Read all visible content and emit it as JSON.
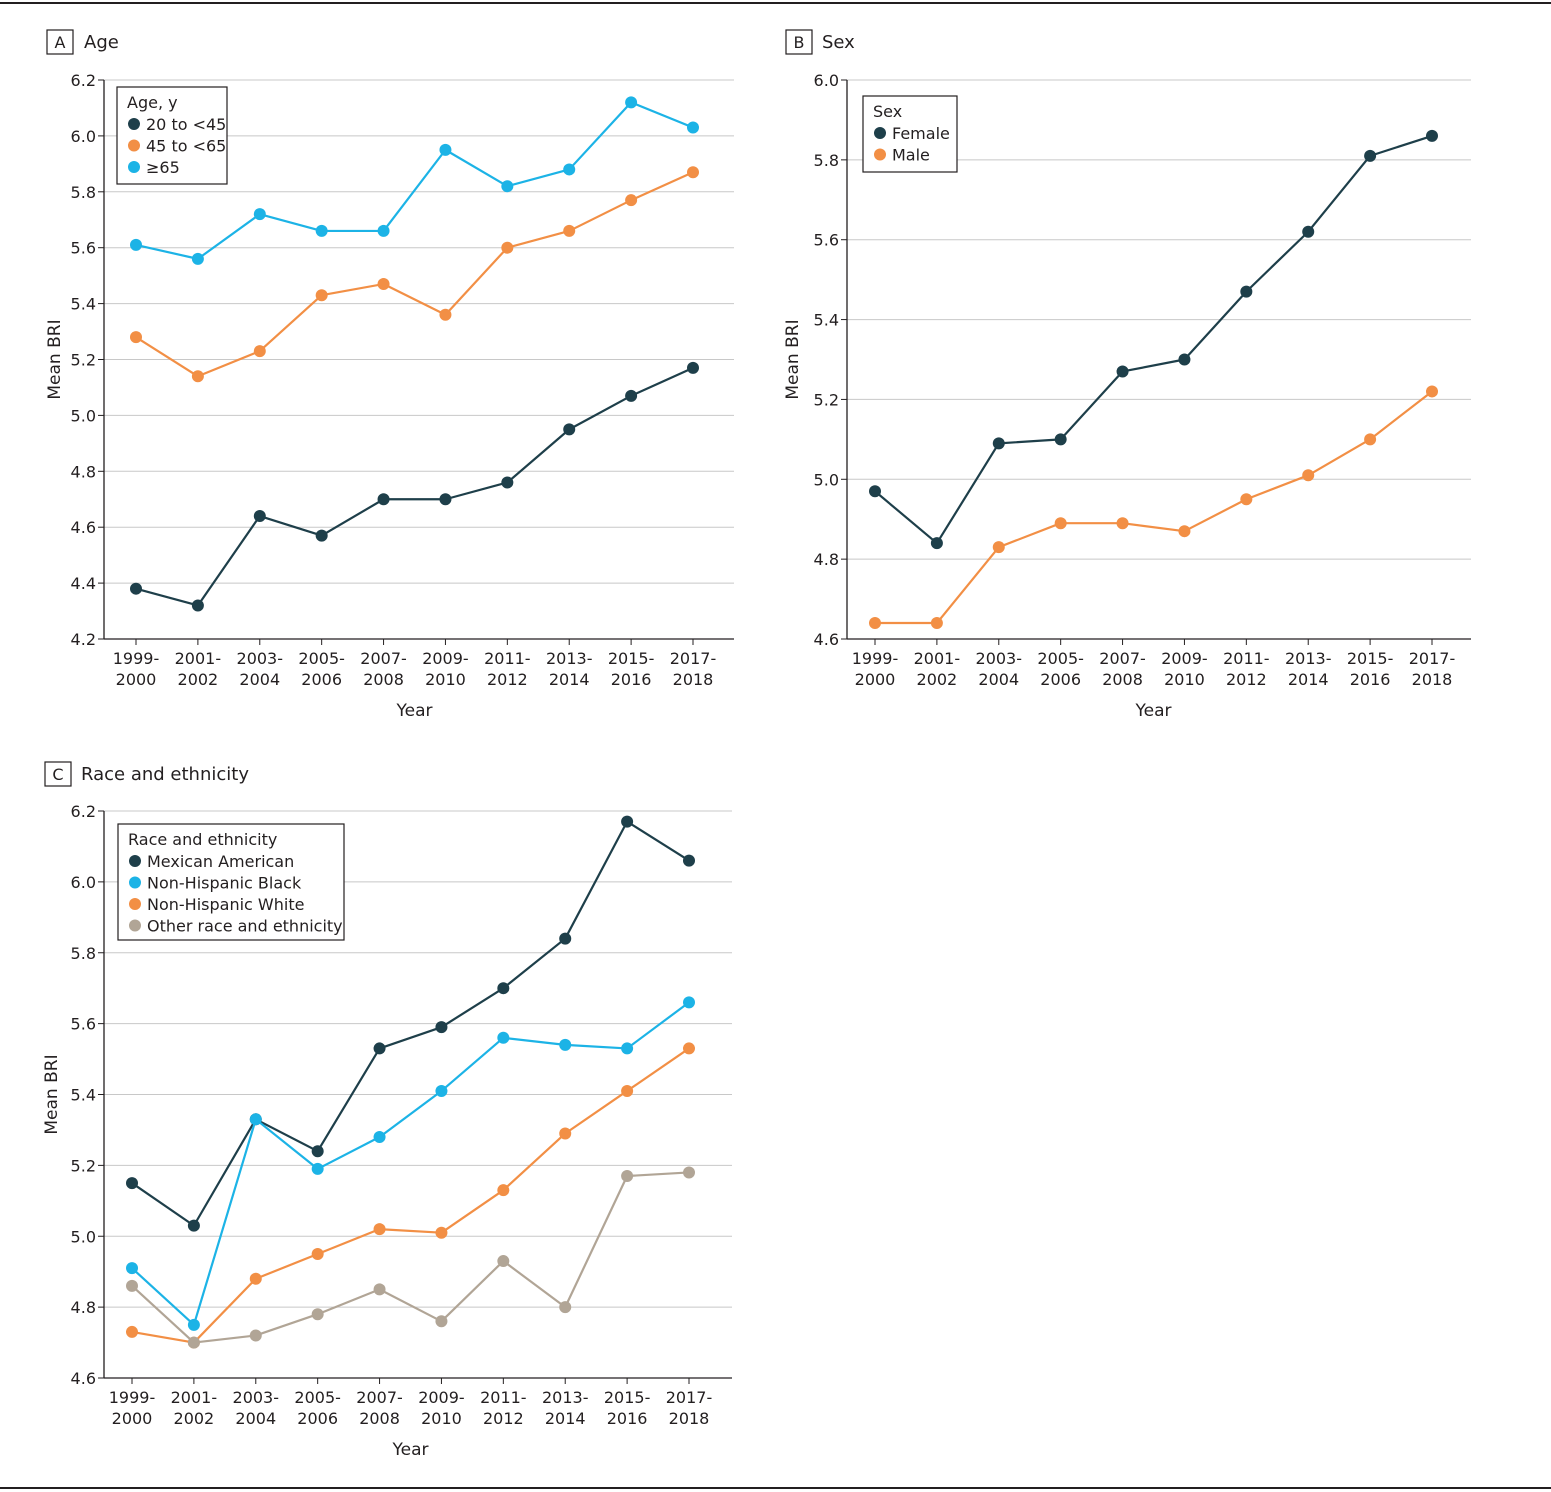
{
  "colors": {
    "dark": "#1e3f4a",
    "orange": "#f28f45",
    "cyan": "#1cb3e6",
    "gray": "#b1a596",
    "grid": "#c8c8c8",
    "axis": "#231f20"
  },
  "chart_data": [
    {
      "type": "line",
      "panel": "A",
      "title": "Age",
      "xlabel": "Year",
      "ylabel": "Mean BRI",
      "ylim": [
        4.2,
        6.2
      ],
      "yticks": [
        "4.2",
        "4.4",
        "4.6",
        "4.8",
        "5.0",
        "5.2",
        "5.4",
        "5.6",
        "5.8",
        "6.0",
        "6.2"
      ],
      "categories": [
        [
          "1999-",
          "2000"
        ],
        [
          "2001-",
          "2002"
        ],
        [
          "2003-",
          "2004"
        ],
        [
          "2005-",
          "2006"
        ],
        [
          "2007-",
          "2008"
        ],
        [
          "2009-",
          "2010"
        ],
        [
          "2011-",
          "2012"
        ],
        [
          "2013-",
          "2014"
        ],
        [
          "2015-",
          "2016"
        ],
        [
          "2017-",
          "2018"
        ]
      ],
      "legend_title": "Age, y",
      "legend_position": "top-left",
      "series": [
        {
          "name": "20 to <45",
          "color": "dark",
          "values": [
            4.38,
            4.32,
            4.64,
            4.57,
            4.7,
            4.7,
            4.76,
            4.95,
            5.07,
            5.17
          ]
        },
        {
          "name": "45 to <65",
          "color": "orange",
          "values": [
            5.28,
            5.14,
            5.23,
            5.43,
            5.47,
            5.36,
            5.6,
            5.66,
            5.77,
            5.87
          ]
        },
        {
          "name": "≥65",
          "color": "cyan",
          "values": [
            5.61,
            5.56,
            5.72,
            5.66,
            5.66,
            5.95,
            5.82,
            5.88,
            6.12,
            6.03
          ]
        }
      ]
    },
    {
      "type": "line",
      "panel": "B",
      "title": "Sex",
      "xlabel": "Year",
      "ylabel": "Mean BRI",
      "ylim": [
        4.6,
        6.0
      ],
      "yticks": [
        "4.6",
        "4.8",
        "5.0",
        "5.2",
        "5.4",
        "5.6",
        "5.8",
        "6.0"
      ],
      "categories": [
        [
          "1999-",
          "2000"
        ],
        [
          "2001-",
          "2002"
        ],
        [
          "2003-",
          "2004"
        ],
        [
          "2005-",
          "2006"
        ],
        [
          "2007-",
          "2008"
        ],
        [
          "2009-",
          "2010"
        ],
        [
          "2011-",
          "2012"
        ],
        [
          "2013-",
          "2014"
        ],
        [
          "2015-",
          "2016"
        ],
        [
          "2017-",
          "2018"
        ]
      ],
      "legend_title": "Sex",
      "legend_position": "top-left",
      "series": [
        {
          "name": "Female",
          "color": "dark",
          "values": [
            4.97,
            4.84,
            5.09,
            5.1,
            5.27,
            5.3,
            5.47,
            5.62,
            5.81,
            5.86
          ]
        },
        {
          "name": "Male",
          "color": "orange",
          "values": [
            4.64,
            4.64,
            4.83,
            4.89,
            4.89,
            4.87,
            4.95,
            5.01,
            5.1,
            5.22
          ]
        }
      ]
    },
    {
      "type": "line",
      "panel": "C",
      "title": "Race and ethnicity",
      "xlabel": "Year",
      "ylabel": "Mean BRI",
      "ylim": [
        4.6,
        6.2
      ],
      "yticks": [
        "4.6",
        "4.8",
        "5.0",
        "5.2",
        "5.4",
        "5.6",
        "5.8",
        "6.0",
        "6.2"
      ],
      "categories": [
        [
          "1999-",
          "2000"
        ],
        [
          "2001-",
          "2002"
        ],
        [
          "2003-",
          "2004"
        ],
        [
          "2005-",
          "2006"
        ],
        [
          "2007-",
          "2008"
        ],
        [
          "2009-",
          "2010"
        ],
        [
          "2011-",
          "2012"
        ],
        [
          "2013-",
          "2014"
        ],
        [
          "2015-",
          "2016"
        ],
        [
          "2017-",
          "2018"
        ]
      ],
      "legend_title": "Race and ethnicity",
      "legend_position": "top-left",
      "series": [
        {
          "name": "Mexican American",
          "color": "dark",
          "values": [
            5.15,
            5.03,
            5.33,
            5.24,
            5.53,
            5.59,
            5.7,
            5.84,
            6.17,
            6.06
          ]
        },
        {
          "name": "Non-Hispanic Black",
          "color": "cyan",
          "values": [
            4.91,
            4.75,
            5.33,
            5.19,
            5.28,
            5.41,
            5.56,
            5.54,
            5.53,
            5.66
          ]
        },
        {
          "name": "Non-Hispanic White",
          "color": "orange",
          "values": [
            4.73,
            4.7,
            4.88,
            4.95,
            5.02,
            5.01,
            5.13,
            5.29,
            5.41,
            5.53
          ]
        },
        {
          "name": "Other race and ethnicity",
          "color": "gray",
          "values": [
            4.86,
            4.7,
            4.72,
            4.78,
            4.85,
            4.76,
            4.93,
            4.8,
            5.17,
            5.18
          ]
        }
      ]
    }
  ]
}
